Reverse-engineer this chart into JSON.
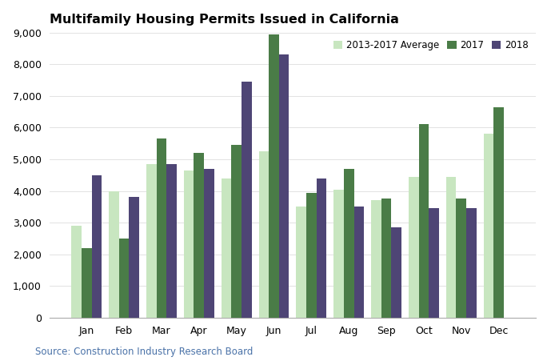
{
  "title": "Multifamily Housing Permits Issued in California",
  "source": "Source: Construction Industry Research Board",
  "months": [
    "Jan",
    "Feb",
    "Mar",
    "Apr",
    "May",
    "Jun",
    "Jul",
    "Aug",
    "Sep",
    "Oct",
    "Nov",
    "Dec"
  ],
  "avg_2013_2017": [
    2900,
    4000,
    4850,
    4650,
    4400,
    5250,
    3500,
    4050,
    3700,
    4450,
    4450,
    5800
  ],
  "data_2017": [
    2200,
    2500,
    5650,
    5200,
    5450,
    8950,
    3950,
    4700,
    3750,
    6100,
    3750,
    6650
  ],
  "data_2018": [
    4500,
    3800,
    4850,
    4700,
    7450,
    8300,
    4400,
    3500,
    2850,
    3450,
    3450,
    0
  ],
  "color_avg": "#c8e6c0",
  "color_2017": "#4a7c47",
  "color_2018": "#4e4575",
  "ylim": [
    0,
    9000
  ],
  "yticks": [
    0,
    1000,
    2000,
    3000,
    4000,
    5000,
    6000,
    7000,
    8000,
    9000
  ],
  "legend_labels": [
    "2013-2017 Average",
    "2017",
    "2018"
  ],
  "legend_colors": [
    "#c8e6c0",
    "#4a7c47",
    "#4e4575"
  ],
  "title_fontsize": 11.5,
  "axis_fontsize": 9,
  "source_fontsize": 8.5,
  "source_color": "#4a72a8"
}
